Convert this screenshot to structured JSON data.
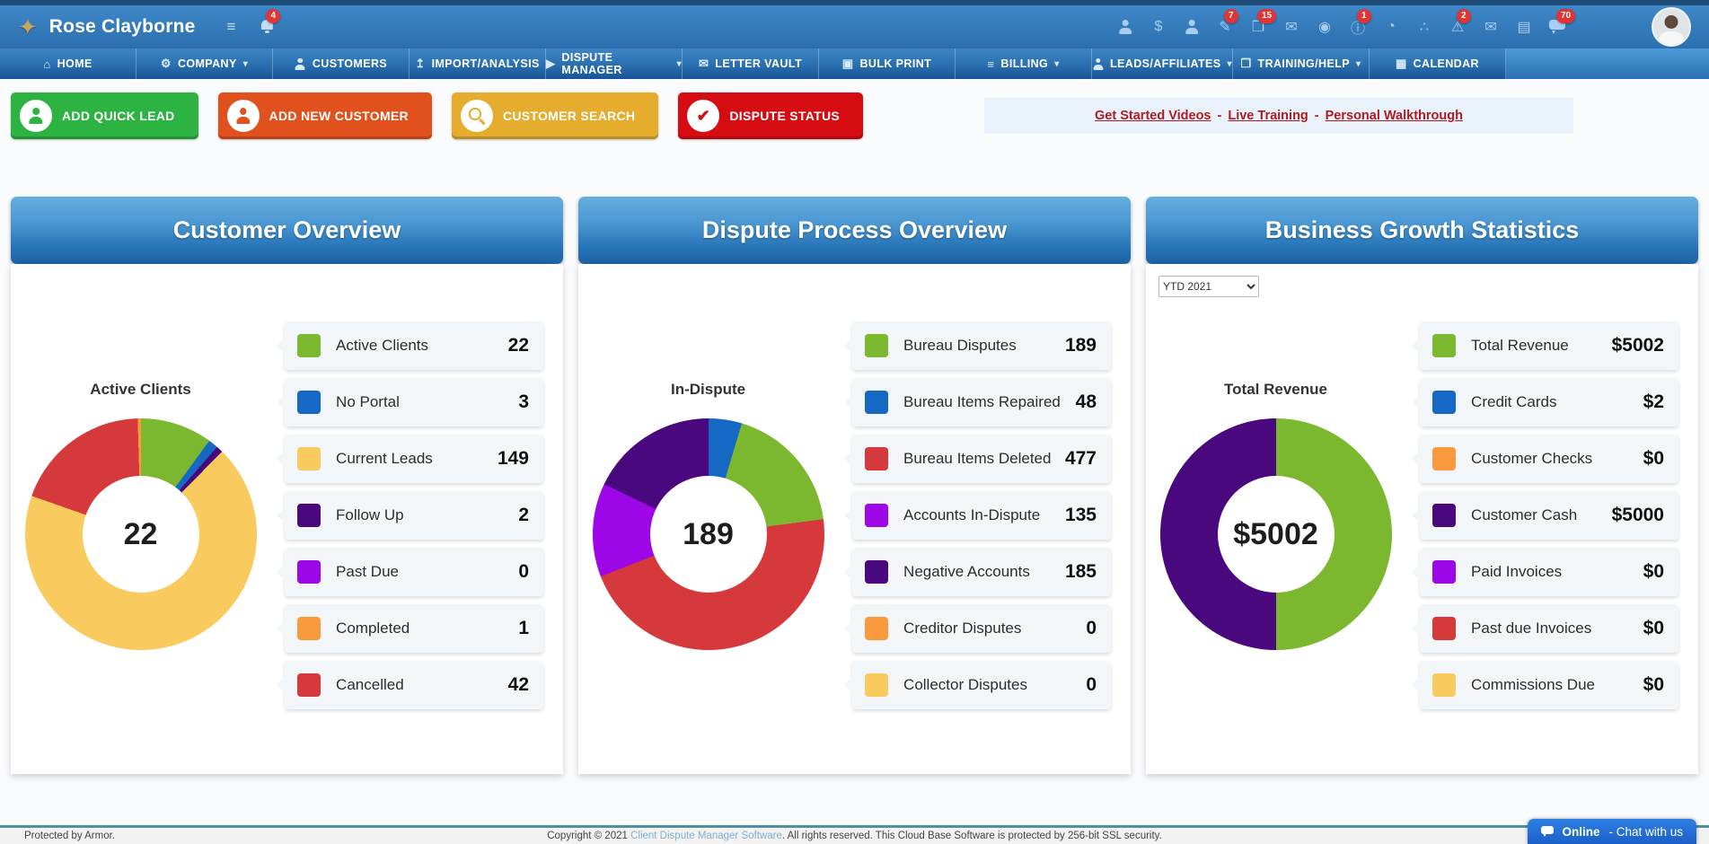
{
  "topbar": {
    "user_name": "Rose Clayborne",
    "left_icons": [
      {
        "name": "tasks-icon"
      },
      {
        "name": "notifications-bell-icon",
        "badge": "4"
      }
    ],
    "right_icons": [
      {
        "name": "team-icon"
      },
      {
        "name": "payments-dollar-icon"
      },
      {
        "name": "client-icon"
      },
      {
        "name": "compose-icon",
        "badge": "7"
      },
      {
        "name": "documents-icon",
        "badge": "15"
      },
      {
        "name": "mail-icon"
      },
      {
        "name": "disc-icon"
      },
      {
        "name": "info-icon",
        "badge": "1"
      },
      {
        "name": "pie-chart-icon"
      },
      {
        "name": "sitemap-icon"
      },
      {
        "name": "alert-icon",
        "badge": "2"
      },
      {
        "name": "mail2-icon"
      },
      {
        "name": "money-icon"
      },
      {
        "name": "chat-bubbles-icon",
        "badge": "70"
      }
    ]
  },
  "nav": {
    "items": [
      {
        "name": "nav-item-home",
        "icon": "home-icon",
        "label": "HOME",
        "caret": false
      },
      {
        "name": "nav-item-company",
        "icon": "company-gear-icon",
        "label": "COMPANY",
        "caret": true
      },
      {
        "name": "nav-item-customers",
        "icon": "customers-icon",
        "label": "CUSTOMERS",
        "caret": false
      },
      {
        "name": "nav-item-import-analysis",
        "icon": "import-icon",
        "label": "IMPORT/ANALYSIS",
        "caret": false
      },
      {
        "name": "nav-item-dispute-manager",
        "icon": "dispute-icon",
        "label": "DISPUTE MANAGER",
        "caret": true
      },
      {
        "name": "nav-item-letter-vault",
        "icon": "letter-vault-icon",
        "label": "LETTER VAULT",
        "caret": false
      },
      {
        "name": "nav-item-bulk-print",
        "icon": "bulk-print-icon",
        "label": "BULK PRINT",
        "caret": false
      },
      {
        "name": "nav-item-billing",
        "icon": "billing-icon",
        "label": "BILLING",
        "caret": true
      },
      {
        "name": "nav-item-leads-affiliates",
        "icon": "leads-icon",
        "label": "LEADS/AFFILIATES",
        "caret": true
      },
      {
        "name": "nav-item-training-help",
        "icon": "training-icon",
        "label": "TRAINING/HELP",
        "caret": true
      },
      {
        "name": "nav-item-calendar",
        "icon": "calendar-icon",
        "label": "CALENDAR",
        "caret": false
      }
    ]
  },
  "actions": [
    {
      "name": "add-quick-lead-button",
      "icon": "add-lead-person-icon",
      "label": "ADD QUICK LEAD",
      "color": "#2cb342"
    },
    {
      "name": "add-new-customer-button",
      "icon": "add-customer-person-icon",
      "label": "ADD NEW CUSTOMER",
      "color": "#e0511d"
    },
    {
      "name": "customer-search-button",
      "icon": "search-icon",
      "label": "CUSTOMER SEARCH",
      "color": "#e5ac2d"
    },
    {
      "name": "dispute-status-button",
      "icon": "check-icon",
      "label": "DISPUTE STATUS",
      "color": "#d50d12"
    }
  ],
  "help": {
    "links": [
      "Get Started Videos",
      "Live Training",
      "Personal Walkthrough"
    ],
    "separator": "-"
  },
  "panels": [
    {
      "title": "Customer Overview",
      "chart_label": "Active Clients",
      "center_value": "22",
      "legend": [
        {
          "label": "Active Clients",
          "value": "22",
          "color": "#7cb82f"
        },
        {
          "label": "No Portal",
          "value": "3",
          "color": "#1568c4"
        },
        {
          "label": "Current Leads",
          "value": "149",
          "color": "#f9cb5f"
        },
        {
          "label": "Follow Up",
          "value": "2",
          "color": "#49087e"
        },
        {
          "label": "Past Due",
          "value": "0",
          "color": "#9d07e8"
        },
        {
          "label": "Completed",
          "value": "1",
          "color": "#f89a3d"
        },
        {
          "label": "Cancelled",
          "value": "42",
          "color": "#d5393b"
        }
      ],
      "segments": [
        {
          "color": "#7cb82f",
          "value": 22
        },
        {
          "color": "#1568c4",
          "value": 3
        },
        {
          "color": "#49087e",
          "value": 2
        },
        {
          "color": "#f9cb5f",
          "value": 149
        },
        {
          "color": "#d5393b",
          "value": 42
        },
        {
          "color": "#f89a3d",
          "value": 1
        }
      ]
    },
    {
      "title": "Dispute Process Overview",
      "chart_label": "In-Dispute",
      "center_value": "189",
      "legend": [
        {
          "label": "Bureau Disputes",
          "value": "189",
          "color": "#7cb82f"
        },
        {
          "label": "Bureau Items Repaired",
          "value": "48",
          "color": "#1568c4"
        },
        {
          "label": "Bureau Items Deleted",
          "value": "477",
          "color": "#d5393b"
        },
        {
          "label": "Accounts In-Dispute",
          "value": "135",
          "color": "#9d07e8"
        },
        {
          "label": "Negative Accounts",
          "value": "185",
          "color": "#49087e"
        },
        {
          "label": "Creditor Disputes",
          "value": "0",
          "color": "#f89a3d"
        },
        {
          "label": "Collector Disputes",
          "value": "0",
          "color": "#f9cb5f"
        }
      ],
      "segments": [
        {
          "color": "#1568c4",
          "value": 48
        },
        {
          "color": "#7cb82f",
          "value": 189
        },
        {
          "color": "#d5393b",
          "value": 477
        },
        {
          "color": "#9d07e8",
          "value": 135
        },
        {
          "color": "#49087e",
          "value": 185
        }
      ]
    },
    {
      "title": "Business Growth Statistics",
      "chart_label": "Total Revenue",
      "center_value": "$5002",
      "filter": {
        "selected": "YTD 2021"
      },
      "legend": [
        {
          "label": "Total Revenue",
          "value": "$5002",
          "color": "#7cb82f"
        },
        {
          "label": "Credit Cards",
          "value": "$2",
          "color": "#1568c4"
        },
        {
          "label": "Customer Checks",
          "value": "$0",
          "color": "#f89a3d"
        },
        {
          "label": "Customer Cash",
          "value": "$5000",
          "color": "#49087e"
        },
        {
          "label": "Paid Invoices",
          "value": "$0",
          "color": "#9d07e8"
        },
        {
          "label": "Past due Invoices",
          "value": "$0",
          "color": "#d5393b"
        },
        {
          "label": "Commissions Due",
          "value": "$0",
          "color": "#f9cb5f"
        }
      ],
      "segments": [
        {
          "color": "#7cb82f",
          "value": 5002
        },
        {
          "color": "#1568c4",
          "value": 2
        },
        {
          "color": "#49087e",
          "value": 5000
        }
      ]
    }
  ],
  "footer": {
    "left": "Protected by Armor.",
    "center_prefix": "Copyright © 2021 ",
    "center_link": "Client Dispute Manager Software",
    "center_suffix": ". All rights reserved. This Cloud Base Software is protected by 256-bit SSL security."
  },
  "chat": {
    "status": "Online",
    "rest": "- Chat with us"
  }
}
